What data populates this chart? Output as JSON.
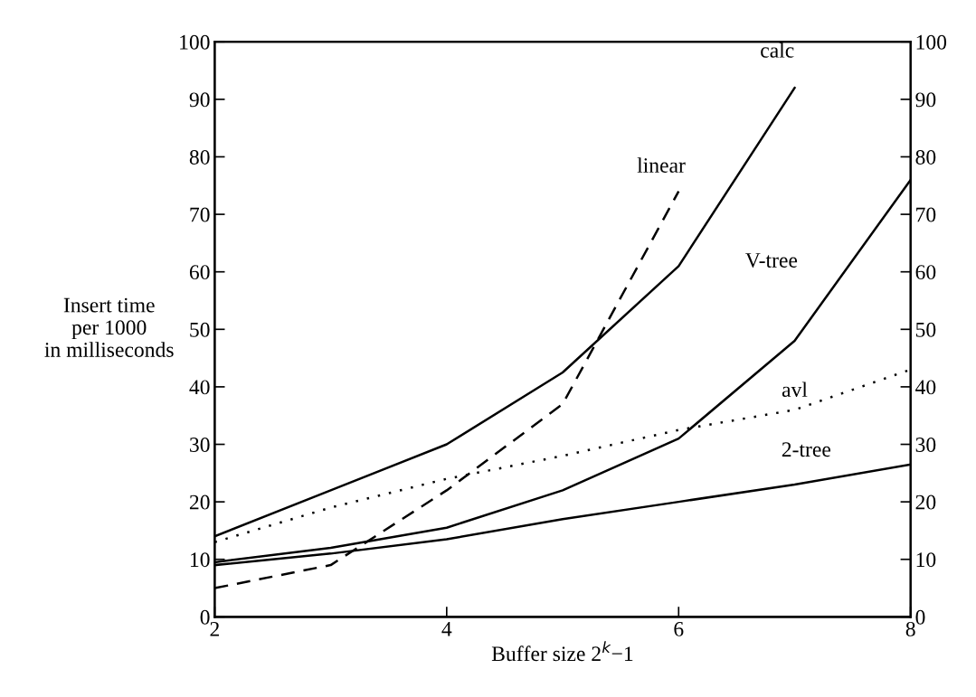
{
  "chart_data": {
    "type": "line",
    "xlabel": "Buffer size 2$^{k}$−1",
    "ylabel": "Insert time\nper 1000\nin milliseconds",
    "x": [
      2,
      3,
      4,
      5,
      6,
      7,
      8
    ],
    "series": [
      {
        "name": "calc",
        "color": "#000000",
        "line_style": "solid",
        "values": [
          14,
          22,
          30,
          42.5,
          61,
          92,
          null
        ]
      },
      {
        "name": "linear",
        "color": "#000000",
        "line_style": "dashed",
        "values": [
          5,
          9,
          22,
          37,
          74,
          null,
          null
        ]
      },
      {
        "name": "V-tree",
        "color": "#000000",
        "line_style": "solid",
        "values": [
          9.5,
          12,
          15.5,
          22,
          31,
          48,
          76
        ]
      },
      {
        "name": "avl",
        "color": "#000000",
        "line_style": "dotted",
        "values": [
          13,
          19,
          24,
          28,
          32.5,
          36,
          43
        ]
      },
      {
        "name": "2-tree",
        "color": "#000000",
        "line_style": "solid",
        "values": [
          9,
          11,
          13.5,
          17,
          20,
          23,
          26.5
        ]
      }
    ],
    "xlim": [
      2,
      8
    ],
    "xticks": [
      2,
      4,
      6,
      8
    ],
    "ylim": [
      0,
      100
    ],
    "yticks": [
      0,
      10,
      20,
      30,
      40,
      50,
      60,
      70,
      80,
      90,
      100
    ],
    "y2lim": [
      0,
      100
    ],
    "y2ticks": [
      0,
      10,
      20,
      30,
      40,
      50,
      60,
      70,
      80,
      90,
      100
    ],
    "grid": false,
    "legend": false,
    "marker": "none"
  }
}
